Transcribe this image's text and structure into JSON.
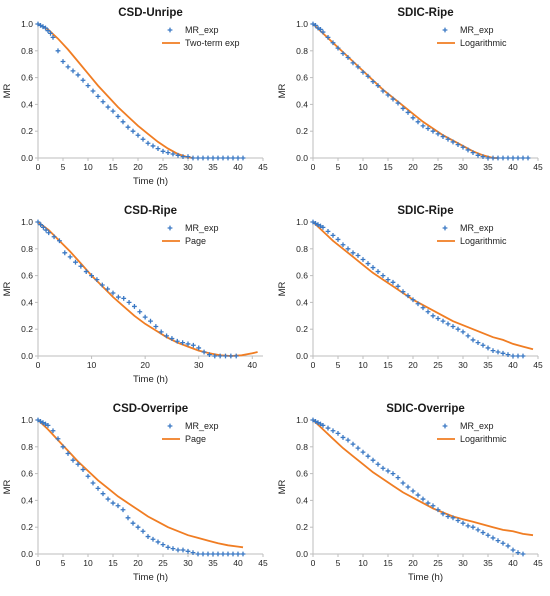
{
  "colors": {
    "exp": "#3a78c4",
    "model": "#f07d23",
    "axis": "#bdbdbd"
  },
  "chart_data": [
    {
      "type": "scatter",
      "title": "CSD-Unripe",
      "xlabel": "Time (h)",
      "ylabel": "MR",
      "xlim": [
        0,
        45
      ],
      "ylim": [
        0,
        1.0
      ],
      "xticks": [
        "0",
        "5",
        "10",
        "15",
        "20",
        "25",
        "30",
        "35",
        "40",
        "45"
      ],
      "yticks": [
        "0.0",
        "0.2",
        "0.4",
        "0.6",
        "0.8",
        "1.0"
      ],
      "legend": "top-right",
      "series": [
        {
          "name": "MR_exp",
          "style": "marker",
          "x": [
            0,
            0.5,
            1,
            1.5,
            2,
            2.5,
            3,
            4,
            5,
            6,
            7,
            8,
            9,
            10,
            11,
            12,
            13,
            14,
            15,
            16,
            17,
            18,
            19,
            20,
            21,
            22,
            23,
            24,
            25,
            26,
            27,
            28,
            29,
            30,
            31,
            32,
            33,
            34,
            35,
            36,
            37,
            38,
            39,
            40,
            41
          ],
          "y": [
            1.0,
            0.99,
            0.98,
            0.97,
            0.95,
            0.93,
            0.9,
            0.8,
            0.72,
            0.68,
            0.65,
            0.62,
            0.58,
            0.54,
            0.5,
            0.46,
            0.42,
            0.38,
            0.35,
            0.31,
            0.27,
            0.23,
            0.2,
            0.17,
            0.14,
            0.11,
            0.09,
            0.07,
            0.05,
            0.04,
            0.03,
            0.02,
            0.01,
            0.01,
            0.0,
            0.0,
            0.0,
            0.0,
            0.0,
            0.0,
            0.0,
            0.0,
            0.0,
            0.0,
            0.0
          ]
        },
        {
          "name": "Two-term exp",
          "style": "line",
          "x": [
            0,
            2,
            4,
            6,
            8,
            10,
            12,
            14,
            16,
            18,
            20,
            22,
            24,
            26,
            28,
            30,
            31
          ],
          "y": [
            1.0,
            0.96,
            0.89,
            0.81,
            0.72,
            0.63,
            0.54,
            0.46,
            0.38,
            0.31,
            0.24,
            0.18,
            0.12,
            0.07,
            0.03,
            0.005,
            0.0
          ]
        }
      ]
    },
    {
      "type": "scatter",
      "title": "SDIC-Ripe",
      "xlabel": "",
      "ylabel": "MR",
      "xlim": [
        0,
        45
      ],
      "ylim": [
        0,
        1.0
      ],
      "xticks": [
        "0",
        "5",
        "10",
        "15",
        "20",
        "25",
        "30",
        "35",
        "40",
        "45"
      ],
      "yticks": [
        "0.0",
        "0.2",
        "0.4",
        "0.6",
        "0.8",
        "1.0"
      ],
      "legend": "top-right",
      "series": [
        {
          "name": "MR_exp",
          "style": "marker",
          "x": [
            0,
            0.5,
            1,
            1.5,
            2,
            3,
            4,
            5,
            6,
            7,
            8,
            9,
            10,
            11,
            12,
            13,
            14,
            15,
            16,
            17,
            18,
            19,
            20,
            21,
            22,
            23,
            24,
            25,
            26,
            27,
            28,
            29,
            30,
            31,
            32,
            33,
            34,
            35,
            36,
            37,
            38,
            39,
            40,
            41,
            42,
            43
          ],
          "y": [
            1.0,
            0.99,
            0.97,
            0.96,
            0.94,
            0.9,
            0.86,
            0.82,
            0.78,
            0.75,
            0.71,
            0.68,
            0.64,
            0.61,
            0.57,
            0.54,
            0.5,
            0.47,
            0.44,
            0.41,
            0.37,
            0.34,
            0.3,
            0.27,
            0.24,
            0.22,
            0.2,
            0.18,
            0.16,
            0.14,
            0.12,
            0.1,
            0.08,
            0.06,
            0.04,
            0.02,
            0.01,
            0.0,
            0.0,
            0.0,
            0.0,
            0.0,
            0.0,
            0.0,
            0.0,
            0.0
          ]
        },
        {
          "name": "Logarithmic",
          "style": "line",
          "x": [
            0,
            2,
            4,
            6,
            8,
            10,
            12,
            14,
            16,
            18,
            20,
            22,
            24,
            26,
            28,
            30,
            32,
            34,
            36,
            37
          ],
          "y": [
            1.0,
            0.93,
            0.86,
            0.79,
            0.72,
            0.65,
            0.58,
            0.51,
            0.45,
            0.39,
            0.33,
            0.27,
            0.22,
            0.17,
            0.13,
            0.09,
            0.05,
            0.02,
            0.0,
            0.0
          ]
        }
      ]
    },
    {
      "type": "scatter",
      "title": "CSD-Ripe",
      "xlabel": "Time (h)",
      "ylabel": "MR",
      "xlim": [
        0,
        42
      ],
      "ylim": [
        0,
        1.0
      ],
      "xticks": [
        "0",
        "10",
        "20",
        "30",
        "40"
      ],
      "xtick_values": [
        0,
        10,
        20,
        30,
        40
      ],
      "yticks": [
        "0.0",
        "0.2",
        "0.4",
        "0.6",
        "0.8",
        "1.0"
      ],
      "legend": "top-right",
      "series": [
        {
          "name": "MR_exp",
          "style": "marker",
          "x": [
            0,
            0.5,
            1,
            1.5,
            2,
            3,
            4,
            5,
            6,
            7,
            8,
            9,
            10,
            11,
            12,
            13,
            14,
            15,
            16,
            17,
            18,
            19,
            20,
            21,
            22,
            23,
            24,
            25,
            26,
            27,
            28,
            29,
            30,
            31,
            32,
            33,
            34,
            35,
            36,
            37
          ],
          "y": [
            1.0,
            0.98,
            0.96,
            0.94,
            0.92,
            0.89,
            0.86,
            0.77,
            0.74,
            0.7,
            0.67,
            0.63,
            0.6,
            0.57,
            0.53,
            0.5,
            0.47,
            0.44,
            0.43,
            0.4,
            0.37,
            0.33,
            0.29,
            0.26,
            0.22,
            0.18,
            0.15,
            0.13,
            0.11,
            0.1,
            0.09,
            0.08,
            0.06,
            0.03,
            0.01,
            0.0,
            0.0,
            0.0,
            0.0,
            0.0
          ]
        },
        {
          "name": "Page",
          "style": "line",
          "x": [
            0,
            2,
            4,
            6,
            8,
            10,
            12,
            14,
            16,
            18,
            20,
            22,
            24,
            26,
            28,
            30,
            32,
            34,
            36,
            38,
            40,
            41
          ],
          "y": [
            1.0,
            0.94,
            0.86,
            0.78,
            0.69,
            0.6,
            0.52,
            0.44,
            0.37,
            0.3,
            0.24,
            0.19,
            0.14,
            0.1,
            0.07,
            0.04,
            0.02,
            0.005,
            0.0,
            0.005,
            0.02,
            0.03
          ]
        }
      ]
    },
    {
      "type": "scatter",
      "title": "SDIC-Ripe",
      "xlabel": "",
      "ylabel": "MR",
      "xlim": [
        0,
        45
      ],
      "ylim": [
        0,
        1.0
      ],
      "xticks": [
        "0",
        "5",
        "10",
        "15",
        "20",
        "25",
        "30",
        "35",
        "40",
        "45"
      ],
      "yticks": [
        "0.0",
        "0.2",
        "0.4",
        "0.6",
        "0.8",
        "1.0"
      ],
      "legend": "top-right",
      "series": [
        {
          "name": "MR_exp",
          "style": "marker",
          "x": [
            0,
            0.5,
            1,
            1.5,
            2,
            3,
            4,
            5,
            6,
            7,
            8,
            9,
            10,
            11,
            12,
            13,
            14,
            15,
            16,
            17,
            18,
            19,
            20,
            21,
            22,
            23,
            24,
            25,
            26,
            27,
            28,
            29,
            30,
            31,
            32,
            33,
            34,
            35,
            36,
            37,
            38,
            39,
            40,
            41,
            42
          ],
          "y": [
            1.0,
            0.99,
            0.98,
            0.97,
            0.96,
            0.93,
            0.9,
            0.87,
            0.83,
            0.8,
            0.77,
            0.75,
            0.72,
            0.69,
            0.66,
            0.63,
            0.6,
            0.57,
            0.55,
            0.52,
            0.48,
            0.45,
            0.42,
            0.39,
            0.36,
            0.33,
            0.3,
            0.28,
            0.26,
            0.24,
            0.22,
            0.2,
            0.18,
            0.15,
            0.12,
            0.1,
            0.08,
            0.06,
            0.04,
            0.03,
            0.02,
            0.01,
            0.0,
            0.0,
            0.0
          ]
        },
        {
          "name": "Logarithmic",
          "style": "line",
          "x": [
            0,
            2,
            4,
            6,
            8,
            10,
            12,
            14,
            16,
            18,
            20,
            22,
            24,
            26,
            28,
            30,
            32,
            34,
            36,
            38,
            40,
            42,
            44
          ],
          "y": [
            1.0,
            0.93,
            0.86,
            0.8,
            0.74,
            0.68,
            0.62,
            0.57,
            0.52,
            0.47,
            0.42,
            0.38,
            0.34,
            0.3,
            0.26,
            0.23,
            0.2,
            0.17,
            0.14,
            0.12,
            0.09,
            0.07,
            0.05
          ]
        }
      ]
    },
    {
      "type": "scatter",
      "title": "CSD-Overripe",
      "xlabel": "Time (h)",
      "ylabel": "MR",
      "xlim": [
        0,
        45
      ],
      "ylim": [
        0,
        1.0
      ],
      "xticks": [
        "0",
        "5",
        "10",
        "15",
        "20",
        "25",
        "30",
        "35",
        "40",
        "45"
      ],
      "yticks": [
        "0.0",
        "0.2",
        "0.4",
        "0.6",
        "0.8",
        "1.0"
      ],
      "legend": "top-right",
      "series": [
        {
          "name": "MR_exp",
          "style": "marker",
          "x": [
            0,
            0.5,
            1,
            1.5,
            2,
            3,
            4,
            5,
            6,
            7,
            8,
            9,
            10,
            11,
            12,
            13,
            14,
            15,
            16,
            17,
            18,
            19,
            20,
            21,
            22,
            23,
            24,
            25,
            26,
            27,
            28,
            29,
            30,
            31,
            32,
            33,
            34,
            35,
            36,
            37,
            38,
            39,
            40,
            41
          ],
          "y": [
            1.0,
            0.99,
            0.98,
            0.97,
            0.96,
            0.92,
            0.86,
            0.8,
            0.75,
            0.7,
            0.67,
            0.63,
            0.58,
            0.53,
            0.49,
            0.45,
            0.41,
            0.38,
            0.36,
            0.33,
            0.27,
            0.23,
            0.2,
            0.17,
            0.13,
            0.11,
            0.09,
            0.07,
            0.05,
            0.04,
            0.03,
            0.03,
            0.02,
            0.01,
            0.0,
            0.0,
            0.0,
            0.0,
            0.0,
            0.0,
            0.0,
            0.0,
            0.0,
            0.0
          ]
        },
        {
          "name": "Page",
          "style": "line",
          "x": [
            0,
            2,
            4,
            6,
            8,
            10,
            12,
            14,
            16,
            18,
            20,
            22,
            24,
            26,
            28,
            30,
            32,
            34,
            36,
            38,
            40,
            41
          ],
          "y": [
            1.0,
            0.93,
            0.85,
            0.77,
            0.69,
            0.62,
            0.55,
            0.49,
            0.43,
            0.38,
            0.33,
            0.28,
            0.24,
            0.2,
            0.17,
            0.14,
            0.12,
            0.1,
            0.08,
            0.065,
            0.055,
            0.05
          ]
        }
      ]
    },
    {
      "type": "scatter",
      "title": "SDIC-Overripe",
      "xlabel": "Time (h)",
      "ylabel": "MR",
      "xlim": [
        0,
        45
      ],
      "ylim": [
        0,
        1.0
      ],
      "xticks": [
        "0",
        "5",
        "10",
        "15",
        "20",
        "25",
        "30",
        "35",
        "40",
        "45"
      ],
      "yticks": [
        "0.0",
        "0.2",
        "0.4",
        "0.6",
        "0.8",
        "1.0"
      ],
      "legend": "top-right",
      "series": [
        {
          "name": "MR_exp",
          "style": "marker",
          "x": [
            0,
            0.5,
            1,
            1.5,
            2,
            3,
            4,
            5,
            6,
            7,
            8,
            9,
            10,
            11,
            12,
            13,
            14,
            15,
            16,
            17,
            18,
            19,
            20,
            21,
            22,
            23,
            24,
            25,
            26,
            27,
            28,
            29,
            30,
            31,
            32,
            33,
            34,
            35,
            36,
            37,
            38,
            39,
            40,
            41,
            42
          ],
          "y": [
            1.0,
            0.99,
            0.98,
            0.97,
            0.96,
            0.94,
            0.92,
            0.9,
            0.87,
            0.85,
            0.82,
            0.79,
            0.76,
            0.73,
            0.7,
            0.67,
            0.64,
            0.62,
            0.6,
            0.57,
            0.53,
            0.5,
            0.47,
            0.44,
            0.41,
            0.38,
            0.36,
            0.33,
            0.3,
            0.28,
            0.27,
            0.25,
            0.23,
            0.21,
            0.2,
            0.18,
            0.16,
            0.14,
            0.12,
            0.1,
            0.08,
            0.06,
            0.03,
            0.01,
            0.0
          ]
        },
        {
          "name": "Logarithmic",
          "style": "line",
          "x": [
            0,
            2,
            4,
            6,
            8,
            10,
            12,
            14,
            16,
            18,
            20,
            22,
            24,
            26,
            28,
            30,
            32,
            34,
            36,
            38,
            40,
            42,
            44
          ],
          "y": [
            1.0,
            0.93,
            0.86,
            0.79,
            0.73,
            0.67,
            0.61,
            0.56,
            0.51,
            0.46,
            0.42,
            0.38,
            0.34,
            0.31,
            0.28,
            0.26,
            0.24,
            0.22,
            0.2,
            0.18,
            0.17,
            0.15,
            0.14
          ]
        }
      ]
    }
  ]
}
